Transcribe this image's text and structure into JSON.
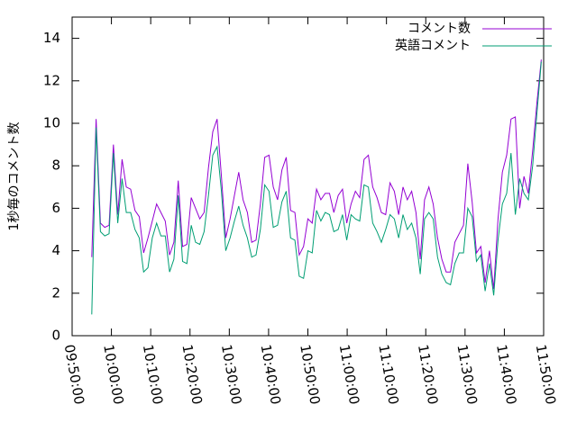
{
  "chart_data": {
    "type": "line",
    "ylabel": "1秒毎のコメント数",
    "x": [
      "09:55:00",
      "09:56:06",
      "09:57:12",
      "09:58:18",
      "09:59:24",
      "10:00:30",
      "10:01:36",
      "10:02:42",
      "10:03:48",
      "10:04:54",
      "10:06:00",
      "10:07:06",
      "10:08:12",
      "10:09:18",
      "10:10:24",
      "10:11:30",
      "10:12:36",
      "10:13:42",
      "10:14:48",
      "10:15:54",
      "10:17:00",
      "10:18:06",
      "10:19:12",
      "10:20:18",
      "10:21:24",
      "10:22:30",
      "10:23:36",
      "10:24:42",
      "10:25:48",
      "10:26:54",
      "10:28:00",
      "10:29:06",
      "10:30:12",
      "10:31:18",
      "10:32:24",
      "10:33:30",
      "10:34:36",
      "10:35:42",
      "10:36:48",
      "10:37:54",
      "10:39:00",
      "10:40:06",
      "10:41:12",
      "10:42:18",
      "10:43:24",
      "10:44:30",
      "10:45:36",
      "10:46:42",
      "10:47:48",
      "10:48:54",
      "10:50:00",
      "10:51:06",
      "10:52:12",
      "10:53:18",
      "10:54:24",
      "10:55:30",
      "10:56:36",
      "10:57:42",
      "10:58:48",
      "10:59:54",
      "11:01:00",
      "11:02:06",
      "11:03:12",
      "11:04:18",
      "11:05:24",
      "11:06:30",
      "11:07:36",
      "11:08:42",
      "11:09:48",
      "11:10:54",
      "11:12:00",
      "11:13:06",
      "11:14:12",
      "11:15:18",
      "11:16:24",
      "11:17:30",
      "11:18:36",
      "11:19:42",
      "11:20:48",
      "11:21:54",
      "11:23:00",
      "11:24:06",
      "11:25:12",
      "11:26:18",
      "11:27:24",
      "11:28:30",
      "11:29:36",
      "11:30:42",
      "11:31:48",
      "11:32:54",
      "11:34:00",
      "11:35:06",
      "11:36:12",
      "11:37:18",
      "11:38:24",
      "11:39:30",
      "11:40:36",
      "11:41:42",
      "11:42:48",
      "11:43:54",
      "11:45:00",
      "11:46:06",
      "11:47:12",
      "11:48:18",
      "11:49:24"
    ],
    "series": [
      {
        "name": "コメント数",
        "color": "#9400d3",
        "values": [
          3.7,
          10.2,
          5.3,
          5.1,
          5.2,
          9.0,
          5.7,
          8.3,
          7.0,
          6.9,
          5.9,
          5.6,
          3.9,
          4.6,
          5.4,
          6.2,
          5.8,
          5.4,
          3.8,
          4.4,
          7.3,
          4.2,
          4.3,
          6.5,
          6.0,
          5.5,
          5.8,
          7.9,
          9.6,
          10.2,
          7.5,
          4.6,
          5.5,
          6.6,
          7.7,
          6.4,
          5.8,
          4.4,
          4.5,
          6.2,
          8.4,
          8.5,
          7.0,
          6.4,
          7.8,
          8.4,
          5.9,
          5.8,
          3.8,
          4.2,
          5.5,
          5.3,
          6.9,
          6.4,
          6.7,
          6.7,
          5.8,
          6.6,
          6.9,
          5.3,
          6.2,
          6.8,
          6.5,
          8.3,
          8.5,
          7.0,
          6.5,
          5.8,
          5.7,
          7.2,
          6.8,
          5.7,
          7.0,
          6.4,
          6.8,
          5.8,
          3.6,
          6.4,
          7.0,
          6.2,
          4.6,
          3.6,
          3.0,
          3.0,
          4.4,
          4.8,
          5.2,
          8.1,
          6.3,
          3.9,
          4.2,
          2.5,
          4.0,
          2.2,
          5.5,
          7.7,
          8.5,
          10.2,
          10.3,
          6.0,
          7.5,
          6.7,
          8.7,
          11.0,
          13.0
        ]
      },
      {
        "name": "英語コメント",
        "color": "#009e73",
        "values": [
          1.0,
          9.8,
          4.9,
          4.7,
          4.8,
          8.6,
          5.3,
          7.4,
          5.8,
          5.8,
          5.0,
          4.6,
          3.0,
          3.2,
          4.6,
          5.3,
          4.7,
          4.7,
          3.0,
          3.6,
          6.6,
          3.5,
          3.4,
          5.2,
          4.4,
          4.3,
          4.9,
          6.6,
          8.5,
          8.9,
          6.8,
          4.0,
          4.6,
          5.4,
          6.1,
          5.2,
          4.6,
          3.7,
          3.8,
          5.0,
          7.1,
          6.8,
          5.1,
          5.2,
          6.3,
          6.8,
          4.6,
          4.5,
          2.8,
          2.7,
          4.0,
          3.9,
          5.9,
          5.4,
          5.8,
          5.7,
          4.9,
          5.0,
          5.7,
          4.5,
          5.7,
          5.5,
          5.4,
          7.1,
          7.0,
          5.3,
          4.9,
          4.4,
          5.0,
          5.7,
          5.5,
          4.6,
          5.7,
          5.0,
          5.3,
          4.6,
          2.9,
          5.5,
          5.8,
          5.5,
          3.7,
          2.9,
          2.5,
          2.4,
          3.4,
          3.9,
          3.9,
          6.0,
          5.6,
          3.5,
          3.8,
          2.1,
          3.4,
          1.9,
          4.5,
          6.2,
          6.7,
          8.6,
          5.7,
          7.4,
          6.7,
          6.4,
          8.0,
          10.5,
          12.9
        ]
      }
    ],
    "xlim": [
      "09:50:00",
      "11:50:00"
    ],
    "xticks": [
      "09:50:00",
      "10:00:00",
      "10:10:00",
      "10:20:00",
      "10:30:00",
      "10:40:00",
      "10:50:00",
      "11:00:00",
      "11:10:00",
      "11:20:00",
      "11:30:00",
      "11:40:00",
      "11:50:00"
    ],
    "ylim": [
      0,
      15
    ],
    "yticks": [
      0,
      2,
      4,
      6,
      8,
      10,
      12,
      14
    ],
    "legend": "top-right"
  }
}
